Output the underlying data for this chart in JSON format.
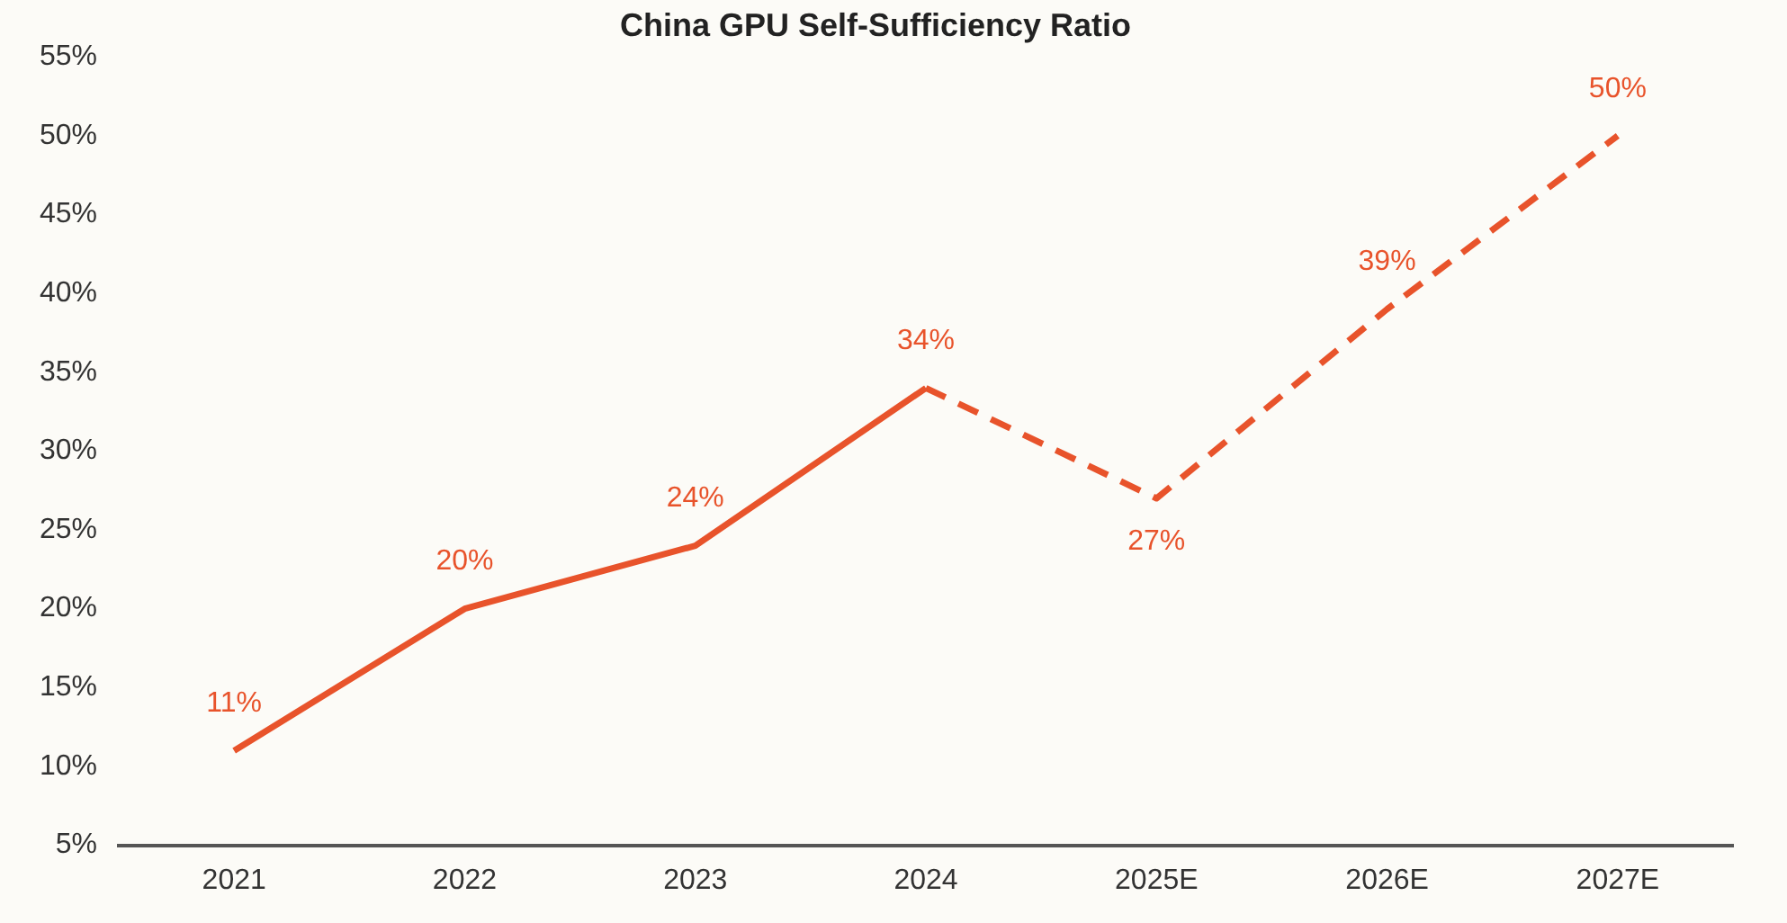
{
  "chart_data": {
    "type": "line",
    "title": "China GPU Self-Sufficiency Ratio",
    "categories": [
      "2021",
      "2022",
      "2023",
      "2024",
      "2025E",
      "2026E",
      "2027E"
    ],
    "series": [
      {
        "color": "#e8532b",
        "line_style": "solid",
        "values": [
          11,
          20,
          24,
          34,
          null,
          null,
          null
        ],
        "value_labels": [
          "11%",
          "20%",
          "24%",
          "34%",
          null,
          null,
          null
        ]
      },
      {
        "color": "#e8532b",
        "line_style": "dashed",
        "values": [
          null,
          null,
          null,
          34,
          27,
          39,
          50
        ],
        "value_labels": [
          null,
          null,
          null,
          null,
          "27%",
          "39%",
          "50%"
        ]
      }
    ],
    "ylim": [
      5,
      55
    ],
    "yticks": [
      {
        "value": 5,
        "label": "5%"
      },
      {
        "value": 10,
        "label": "10%"
      },
      {
        "value": 15,
        "label": "15%"
      },
      {
        "value": 20,
        "label": "20%"
      },
      {
        "value": 25,
        "label": "25%"
      },
      {
        "value": 30,
        "label": "30%"
      },
      {
        "value": 35,
        "label": "35%"
      },
      {
        "value": 40,
        "label": "40%"
      },
      {
        "value": 45,
        "label": "45%"
      },
      {
        "value": 50,
        "label": "50%"
      },
      {
        "value": 55,
        "label": "55%"
      }
    ],
    "grid": false,
    "legend": false,
    "marker": "none"
  }
}
